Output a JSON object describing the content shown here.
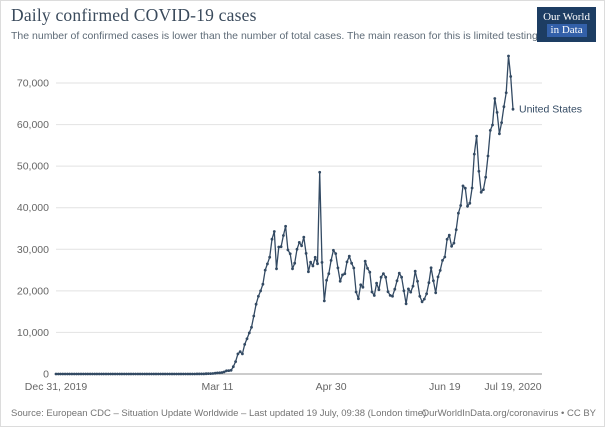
{
  "header": {
    "title": "Daily confirmed COVID-19 cases",
    "subtitle": "The number of confirmed cases is lower than the number of total cases. The main reason for this is limited testing.",
    "logo": {
      "line1": "Our World",
      "line2": "in Data"
    }
  },
  "footer": {
    "source": "Source: European CDC – Situation Update Worldwide – Last updated 19 July, 09:38 (London time)",
    "credit": "OurWorldInData.org/coronavirus • CC BY"
  },
  "colors": {
    "line": "#334a63",
    "brand_navy": "#1d3d63",
    "logo_accent": "#3360a9"
  },
  "chart_data": {
    "type": "line",
    "title": "Daily confirmed COVID-19 cases",
    "xlabel": "",
    "ylabel": "",
    "x_start_date": "Dec 31, 2019",
    "x_end_date": "Jul 19, 2020",
    "ylim": [
      0,
      77000
    ],
    "grid": true,
    "legend_position": "right-end-of-line",
    "yticks": [
      0,
      10000,
      20000,
      30000,
      40000,
      50000,
      60000,
      70000
    ],
    "xticks": [
      {
        "label": "Dec 31, 2019",
        "day": 0
      },
      {
        "label": "Mar 11",
        "day": 71
      },
      {
        "label": "Apr 30",
        "day": 121
      },
      {
        "label": "Jun 19",
        "day": 171
      },
      {
        "label": "Jul 19, 2020",
        "day": 201
      }
    ],
    "series": [
      {
        "name": "United States",
        "values": [
          0,
          0,
          0,
          0,
          0,
          0,
          0,
          0,
          0,
          0,
          0,
          0,
          0,
          0,
          0,
          0,
          0,
          0,
          0,
          0,
          0,
          1,
          0,
          0,
          1,
          0,
          2,
          1,
          0,
          0,
          1,
          1,
          1,
          0,
          0,
          2,
          0,
          1,
          0,
          0,
          1,
          0,
          0,
          1,
          0,
          0,
          0,
          0,
          1,
          0,
          0,
          1,
          0,
          2,
          0,
          1,
          0,
          3,
          2,
          6,
          8,
          3,
          20,
          14,
          22,
          34,
          74,
          105,
          95,
          121,
          200,
          271,
          287,
          351,
          511,
          777,
          823,
          887,
          1766,
          2988,
          4835,
          5374,
          4824,
          7123,
          8459,
          9893,
          11236,
          13963,
          16797,
          18695,
          19979,
          21595,
          24998,
          26473,
          28103,
          32425,
          34272,
          25316,
          30561,
          30613,
          33323,
          35527,
          29861,
          28917,
          25306,
          26641,
          30003,
          31667,
          30833,
          32922,
          29002,
          24601,
          26889,
          25985,
          28065,
          26543,
          48529,
          26857,
          17588,
          22541,
          24132,
          27326,
          29744,
          28955,
          25524,
          22335,
          23841,
          24128,
          26957,
          28369,
          26660,
          25508,
          19731,
          18106,
          21467,
          20869,
          27143,
          25434,
          24487,
          19734,
          18873,
          21841,
          20289,
          23285,
          24147,
          23290,
          19790,
          18910,
          18721,
          20392,
          22413,
          24266,
          23297,
          20007,
          16891,
          20461,
          19699,
          21140,
          24720,
          22302,
          18679,
          17376,
          18022,
          19286,
          21957,
          25540,
          22425,
          19543,
          23351,
          24925,
          27327,
          28147,
          32411,
          33388,
          30710,
          31496,
          34720,
          38672,
          40526,
          45255,
          44703,
          40344,
          41075,
          44734,
          52898,
          57236,
          48760,
          43742,
          44361,
          47329,
          52442,
          58601,
          59886,
          66281,
          62918,
          57792,
          60469,
          64288,
          67632,
          76491,
          71558,
          63698
        ]
      }
    ]
  }
}
